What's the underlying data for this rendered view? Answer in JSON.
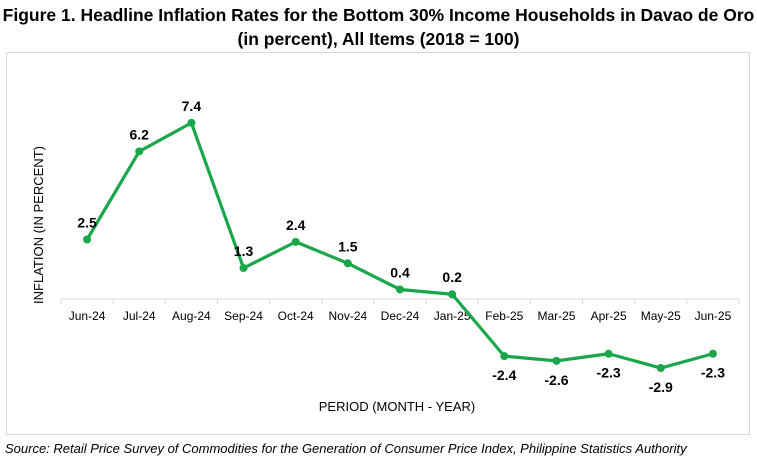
{
  "chart_data": {
    "type": "line",
    "title": "Figure 1. Headline Inflation Rates for the Bottom 30% Income Households in Davao de Oro (in percent), All Items (2018 = 100)",
    "xlabel": "PERIOD (MONTH - YEAR)",
    "ylabel": "INFLATION (IN PERCENT)",
    "categories": [
      "Jun-24",
      "Jul-24",
      "Aug-24",
      "Sep-24",
      "Oct-24",
      "Nov-24",
      "Dec-24",
      "Jan-25",
      "Feb-25",
      "Mar-25",
      "Apr-25",
      "May-25",
      "Jun-25"
    ],
    "series": [
      {
        "values": [
          2.5,
          6.2,
          7.4,
          1.3,
          2.4,
          1.5,
          0.4,
          0.2,
          -2.4,
          -2.6,
          -2.3,
          -2.9,
          -2.3
        ],
        "color": "#1aa64a"
      }
    ],
    "data_labels": [
      "2.5",
      "6.2",
      "7.4",
      "1.3",
      "2.4",
      "1.5",
      "0.4",
      "0.2",
      "-2.4",
      "-2.6",
      "-2.3",
      "-2.9",
      "-2.3"
    ],
    "ylim": [
      -4,
      9
    ],
    "grid": false,
    "legend": "none"
  },
  "source_text": "Source: Retail Price Survey of Commodities for the Generation of Consumer Price Index, Philippine Statistics Authority"
}
